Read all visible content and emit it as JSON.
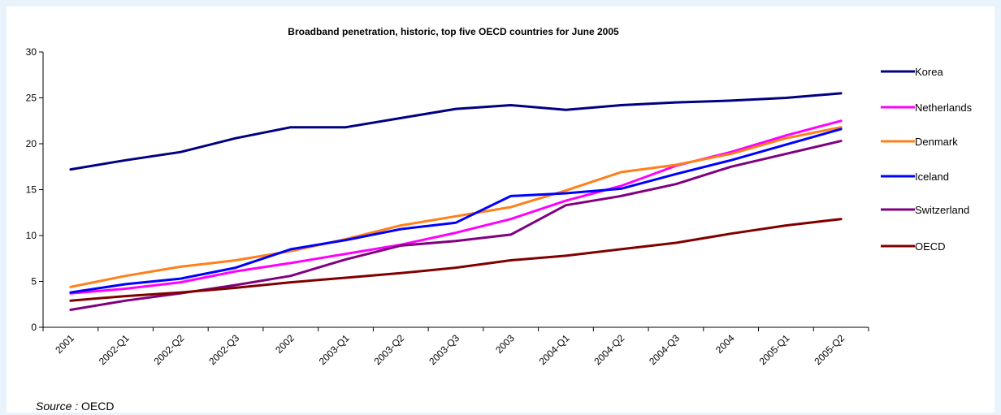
{
  "source": {
    "prefix": "Source :",
    "value": "OECD"
  },
  "chart_data": {
    "type": "line",
    "title": "Broadband penetration, historic, top five OECD countries for June 2005",
    "xlabel": "",
    "ylabel": "",
    "ylim": [
      0,
      30
    ],
    "yticks": [
      0,
      5,
      10,
      15,
      20,
      25,
      30
    ],
    "grid": false,
    "legend_position": "right",
    "categories": [
      "2001",
      "2002-Q1",
      "2002-Q2",
      "2002-Q3",
      "2002",
      "2003-Q1",
      "2003-Q2",
      "2003-Q3",
      "2003",
      "2004-Q1",
      "2004-Q2",
      "2004-Q3",
      "2004",
      "2005-Q1",
      "2005-Q2"
    ],
    "series": [
      {
        "name": "Korea",
        "color": "#000080",
        "values": [
          17.2,
          18.2,
          19.1,
          20.6,
          21.8,
          21.8,
          22.8,
          23.8,
          24.2,
          23.7,
          24.2,
          24.5,
          24.7,
          25.0,
          25.5
        ]
      },
      {
        "name": "Netherlands",
        "color": "#ff00ff",
        "values": [
          3.7,
          4.2,
          4.9,
          6.1,
          7.0,
          8.0,
          9.0,
          10.3,
          11.8,
          13.8,
          15.4,
          17.6,
          19.1,
          20.9,
          22.5
        ]
      },
      {
        "name": "Denmark",
        "color": "#ff7f1a",
        "values": [
          4.4,
          5.6,
          6.6,
          7.3,
          8.3,
          9.6,
          11.1,
          12.1,
          13.1,
          14.9,
          16.9,
          17.7,
          18.9,
          20.6,
          21.8
        ]
      },
      {
        "name": "Iceland",
        "color": "#0000ff",
        "values": [
          3.8,
          4.7,
          5.3,
          6.5,
          8.5,
          9.5,
          10.7,
          11.4,
          14.3,
          14.6,
          15.1,
          16.7,
          18.2,
          19.9,
          21.6
        ]
      },
      {
        "name": "Switzerland",
        "color": "#800080",
        "values": [
          1.9,
          2.9,
          3.7,
          4.6,
          5.6,
          7.4,
          8.9,
          9.4,
          10.1,
          13.3,
          14.3,
          15.6,
          17.5,
          18.9,
          20.3
        ]
      },
      {
        "name": "OECD",
        "color": "#800000",
        "values": [
          2.9,
          3.4,
          3.8,
          4.3,
          4.9,
          5.4,
          5.9,
          6.5,
          7.3,
          7.8,
          8.5,
          9.2,
          10.2,
          11.1,
          11.8
        ]
      }
    ]
  }
}
